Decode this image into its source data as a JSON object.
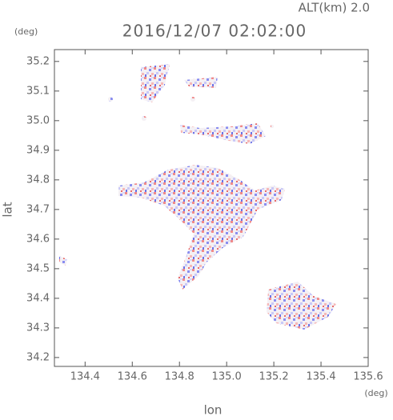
{
  "chart_data": {
    "type": "map",
    "title": "2016/12/07 02:02:00",
    "annotation": "ALT(km) 2.0",
    "y_unit": "(deg)",
    "x_unit": "(deg)",
    "xlabel": "lon",
    "ylabel": "lat",
    "xlim": [
      134.27,
      135.6
    ],
    "ylim": [
      34.17,
      35.24
    ],
    "xticks": [
      134.4,
      134.6,
      134.8,
      {
        "value": 135,
        "label": "135.0"
      },
      135.2,
      135.4,
      135.6
    ],
    "yticks": [
      34.2,
      34.3,
      34.4,
      34.5,
      34.6,
      34.7,
      34.8,
      34.9,
      {
        "value": 35,
        "label": "35.0"
      },
      35.1,
      35.2
    ]
  }
}
